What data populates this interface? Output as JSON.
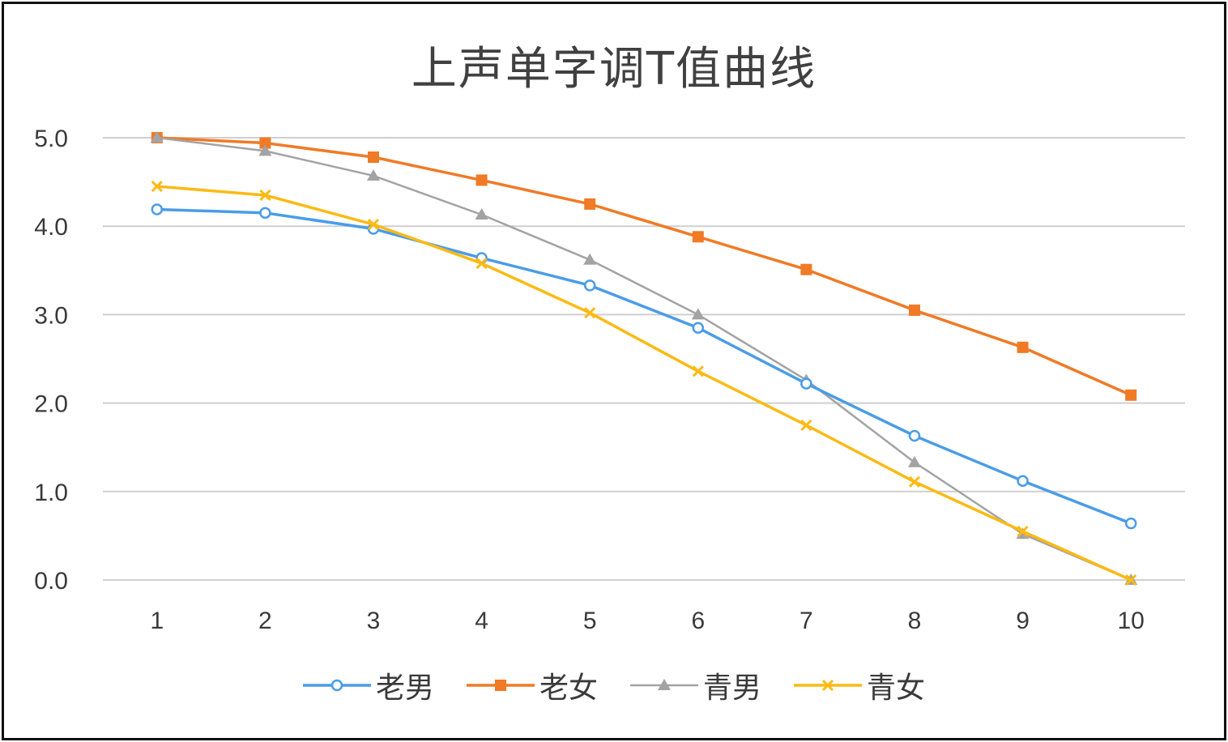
{
  "chart_data": {
    "type": "line",
    "title": "上声单字调T值曲线",
    "x": [
      "1",
      "2",
      "3",
      "4",
      "5",
      "6",
      "7",
      "8",
      "9",
      "10"
    ],
    "ylim": [
      0,
      5
    ],
    "yticks": [
      "0.0",
      "1.0",
      "2.0",
      "3.0",
      "4.0",
      "5.0"
    ],
    "grid": true,
    "legend_position": "bottom",
    "series": [
      {
        "name": "老男",
        "color": "#4A9CE8",
        "marker": "circle",
        "values": [
          4.19,
          4.15,
          3.97,
          3.64,
          3.33,
          2.85,
          2.22,
          1.63,
          1.12,
          0.64
        ]
      },
      {
        "name": "老女",
        "color": "#F07A26",
        "marker": "square",
        "values": [
          5.0,
          4.94,
          4.78,
          4.52,
          4.25,
          3.88,
          3.51,
          3.05,
          2.63,
          2.09
        ]
      },
      {
        "name": "青男",
        "color": "#A3A3A3",
        "marker": "triangle",
        "values": [
          5.0,
          4.85,
          4.57,
          4.13,
          3.62,
          3.0,
          2.26,
          1.33,
          0.52,
          0.0
        ]
      },
      {
        "name": "青女",
        "color": "#FBBA14",
        "marker": "x",
        "values": [
          4.45,
          4.35,
          4.02,
          3.58,
          3.02,
          2.36,
          1.75,
          1.11,
          0.55,
          0.0
        ]
      }
    ]
  }
}
